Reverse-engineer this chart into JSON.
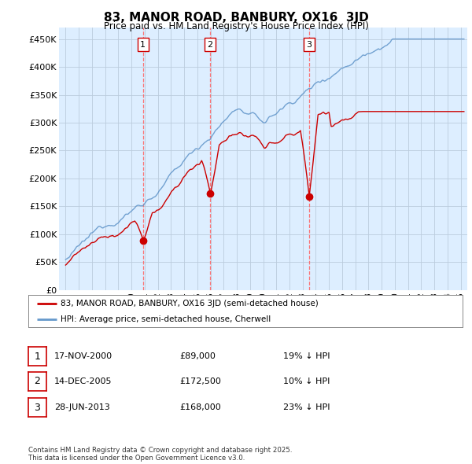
{
  "title": "83, MANOR ROAD, BANBURY, OX16  3JD",
  "subtitle": "Price paid vs. HM Land Registry's House Price Index (HPI)",
  "ylabel_ticks": [
    "£0",
    "£50K",
    "£100K",
    "£150K",
    "£200K",
    "£250K",
    "£300K",
    "£350K",
    "£400K",
    "£450K"
  ],
  "ytick_values": [
    0,
    50000,
    100000,
    150000,
    200000,
    250000,
    300000,
    350000,
    400000,
    450000
  ],
  "ylim": [
    0,
    470000
  ],
  "xlim_start": 1994.5,
  "xlim_end": 2025.5,
  "sale_dates": [
    2000.88,
    2005.96,
    2013.49
  ],
  "sale_prices": [
    89000,
    172500,
    168000
  ],
  "sale_labels": [
    "1",
    "2",
    "3"
  ],
  "vline_color": "#ff6666",
  "red_line_color": "#cc0000",
  "blue_line_color": "#6699cc",
  "plot_bg_color": "#ddeeff",
  "background_color": "#ffffff",
  "grid_color": "#bbccdd",
  "legend_label_red": "83, MANOR ROAD, BANBURY, OX16 3JD (semi-detached house)",
  "legend_label_blue": "HPI: Average price, semi-detached house, Cherwell",
  "table_rows": [
    [
      "1",
      "17-NOV-2000",
      "£89,000",
      "19% ↓ HPI"
    ],
    [
      "2",
      "14-DEC-2005",
      "£172,500",
      "10% ↓ HPI"
    ],
    [
      "3",
      "28-JUN-2013",
      "£168,000",
      "23% ↓ HPI"
    ]
  ],
  "footnote": "Contains HM Land Registry data © Crown copyright and database right 2025.\nThis data is licensed under the Open Government Licence v3.0."
}
